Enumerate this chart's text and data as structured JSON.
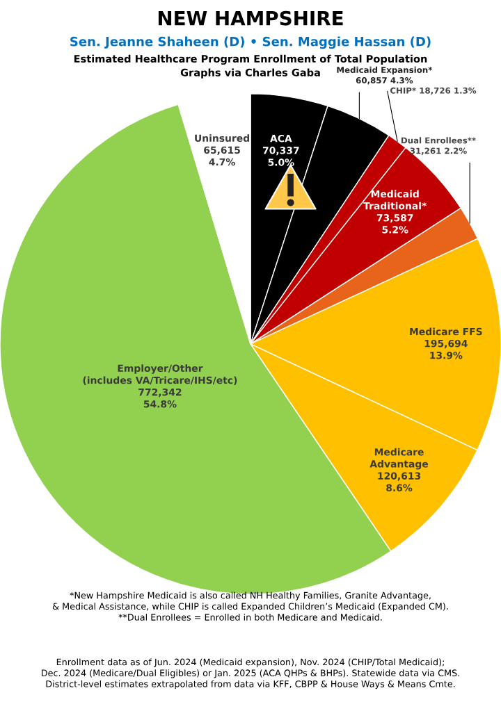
{
  "chart_data": {
    "type": "pie",
    "title": "NEW HAMPSHIRE",
    "subtitle": "Sen. Jeanne Shaheen (D) • Sen. Maggie Hassan (D)",
    "categories": [
      "ACA",
      "Medicaid Expansion*",
      "CHIP*",
      "Medicaid\nTraditional*",
      "Dual Enrollees**",
      "Medicare FFS",
      "Medicare\nAdvantage",
      "Employer/Other\n(includes VA/Tricare/IHS/etc)",
      "Uninsured"
    ],
    "values": [
      70337,
      60857,
      18726,
      73587,
      31261,
      195694,
      120613,
      772342,
      65615
    ],
    "value_labels": [
      "70,337\n5.0%",
      "60,857 4.3%",
      "18,726 1.3%",
      "73,587\n5.2%",
      "31,261 2.2%",
      "195,694\n13.9%",
      "120,613\n8.6%",
      "772,342\n54.8%",
      "65,615\n4.7%"
    ],
    "colors": [
      "#000000",
      "#000000",
      "#c00000",
      "#c00000",
      "#e8641a",
      "#ffc000",
      "#ffc000",
      "#92d050",
      "#ffffff"
    ],
    "legend": false,
    "annotations": [
      "Estimated Healthcare Program Enrollment of Total Population\nGraphs via Charles Gaba",
      "*New Hampshire Medicaid is also called NH Healthy Families, Granite Advantage,\n& Medical Assistance, while CHIP is called Expanded Children’s Medicaid (Expanded CM).\n**Dual Enrollees = Enrolled in both Medicare and Medicaid.",
      "Enrollment data as of Jun. 2024 (Medicaid expansion), Nov. 2024 (CHIP/Total Medicaid);\nDec. 2024 (Medicare/Dual Eligibles) or Jan. 2025 (ACA QHPs & BHPs). Statewide data via CMS.\nDistrict-level estimates extrapolated from data via KFF, CBPP & House Ways & Means Cmte."
    ]
  }
}
